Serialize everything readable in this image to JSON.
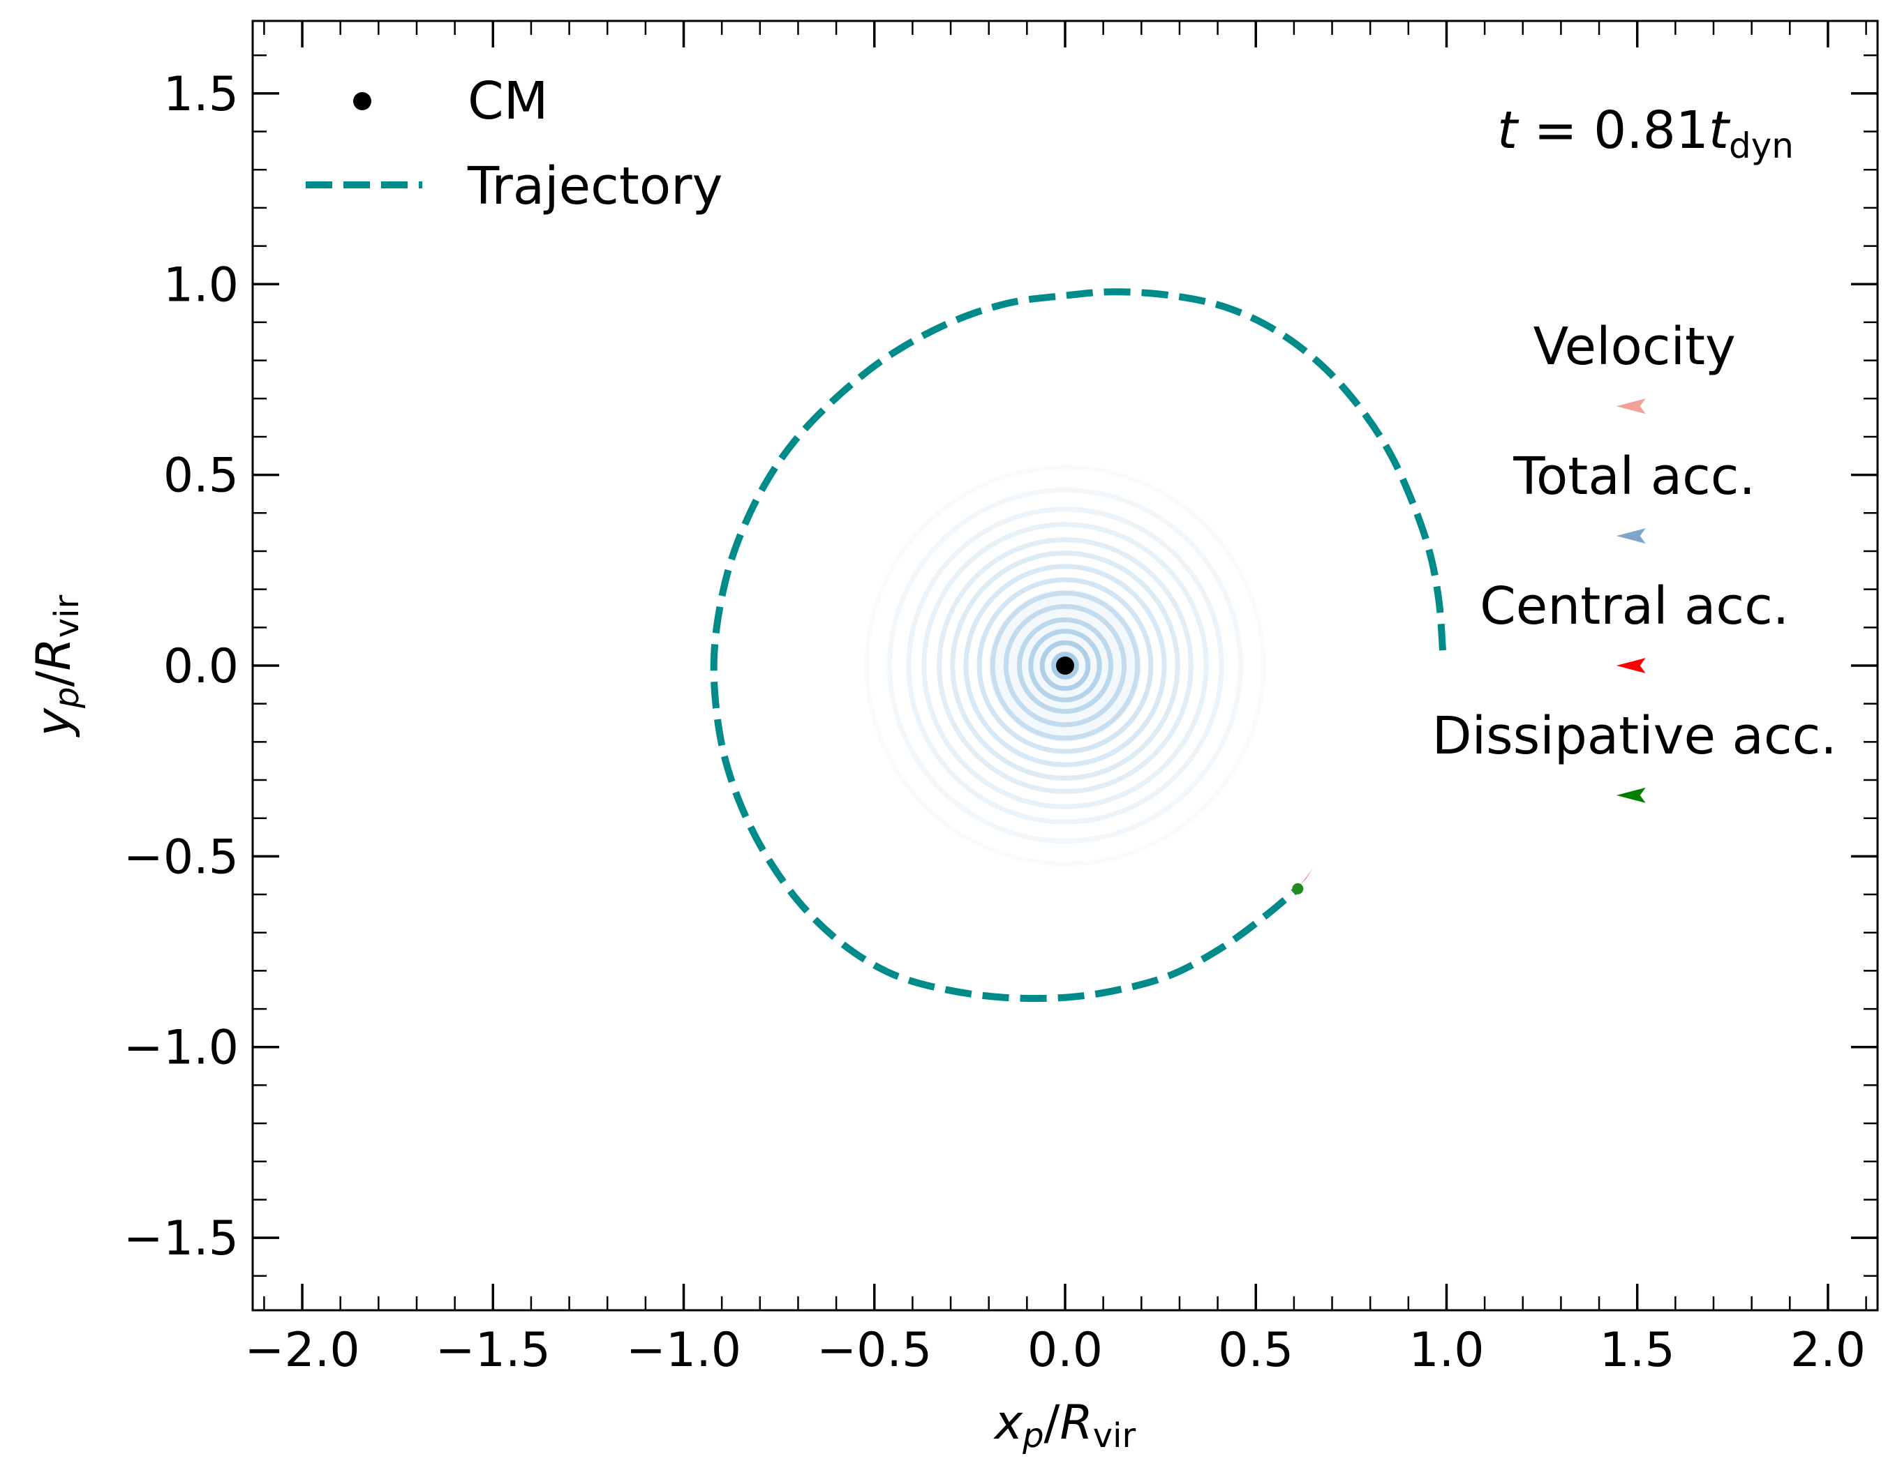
{
  "chart_data": {
    "type": "line",
    "xlabel": {
      "main": "x",
      "sub": "p",
      "slash": "/",
      "R": "R",
      "Rsub": "vir"
    },
    "ylabel": {
      "main": "y",
      "sub": "p",
      "slash": "/",
      "R": "R",
      "Rsub": "vir"
    },
    "xlim": [
      -2.13,
      2.13
    ],
    "ylim": [
      -1.69,
      1.69
    ],
    "xticks": [
      -2.0,
      -1.5,
      -1.0,
      -0.5,
      0.0,
      0.5,
      1.0,
      1.5,
      2.0
    ],
    "xtick_labels": [
      "−2.0",
      "−1.5",
      "−1.0",
      "−0.5",
      "0.0",
      "0.5",
      "1.0",
      "1.5",
      "2.0"
    ],
    "yticks": [
      -1.5,
      -1.0,
      -0.5,
      0.0,
      0.5,
      1.0,
      1.5
    ],
    "ytick_labels": [
      "−1.5",
      "−1.0",
      "−0.5",
      "0.0",
      "0.5",
      "1.0",
      "1.5"
    ],
    "minor_tick_step": 0.1,
    "grid": false,
    "time_label": {
      "t": "t",
      "eq": " = 0.81",
      "t2": "t",
      "sub": "dyn"
    },
    "legend": {
      "placement": "top-left",
      "entries": [
        {
          "label": "CM",
          "marker": "point",
          "color": "#000000"
        },
        {
          "label": "Trajectory",
          "marker": "dashed-line",
          "color": "#008b8b"
        }
      ]
    },
    "cm": {
      "x": 0.0,
      "y": 0.0
    },
    "trajectory": {
      "color": "#008b8b",
      "points": [
        [
          0.99,
          0.04
        ],
        [
          0.98,
          0.17
        ],
        [
          0.955,
          0.3
        ],
        [
          0.91,
          0.43
        ],
        [
          0.85,
          0.56
        ],
        [
          0.77,
          0.68
        ],
        [
          0.67,
          0.79
        ],
        [
          0.55,
          0.88
        ],
        [
          0.42,
          0.94
        ],
        [
          0.28,
          0.97
        ],
        [
          0.13,
          0.98
        ],
        [
          0.0,
          0.97
        ],
        [
          -0.15,
          0.95
        ],
        [
          -0.3,
          0.9
        ],
        [
          -0.45,
          0.82
        ],
        [
          -0.58,
          0.72
        ],
        [
          -0.7,
          0.6
        ],
        [
          -0.79,
          0.47
        ],
        [
          -0.86,
          0.32
        ],
        [
          -0.9,
          0.18
        ],
        [
          -0.92,
          0.03
        ],
        [
          -0.915,
          -0.11
        ],
        [
          -0.89,
          -0.25
        ],
        [
          -0.84,
          -0.39
        ],
        [
          -0.77,
          -0.52
        ],
        [
          -0.68,
          -0.64
        ],
        [
          -0.57,
          -0.74
        ],
        [
          -0.45,
          -0.81
        ],
        [
          -0.31,
          -0.85
        ],
        [
          -0.16,
          -0.87
        ],
        [
          0.0,
          -0.87
        ],
        [
          0.14,
          -0.85
        ],
        [
          0.28,
          -0.81
        ],
        [
          0.41,
          -0.74
        ],
        [
          0.52,
          -0.66
        ],
        [
          0.61,
          -0.585
        ]
      ]
    },
    "particle": {
      "x": 0.61,
      "y": -0.585,
      "color": "#228b22"
    },
    "velocity_arrow_color": "#f4a09a",
    "density_contours": {
      "center": [
        0.0,
        0.0
      ],
      "radii": [
        0.03,
        0.06,
        0.09,
        0.12,
        0.155,
        0.19,
        0.225,
        0.26,
        0.295,
        0.33,
        0.37,
        0.41,
        0.46,
        0.52
      ],
      "opacities": [
        0.85,
        0.8,
        0.72,
        0.64,
        0.56,
        0.5,
        0.45,
        0.4,
        0.35,
        0.3,
        0.25,
        0.2,
        0.14,
        0.08
      ],
      "color": "#9ec6e3"
    },
    "annotations": [
      {
        "label": "Velocity",
        "arrow_y": 0.68,
        "color": "#f4a09a"
      },
      {
        "label": "Total acc.",
        "arrow_y": 0.34,
        "color": "#7fa6c9"
      },
      {
        "label": "Central acc.",
        "arrow_y": 0.0,
        "color": "#ff0000"
      },
      {
        "label": "Dissipative acc.",
        "arrow_y": -0.34,
        "color": "#008000"
      }
    ],
    "annotation_x": 1.5
  }
}
